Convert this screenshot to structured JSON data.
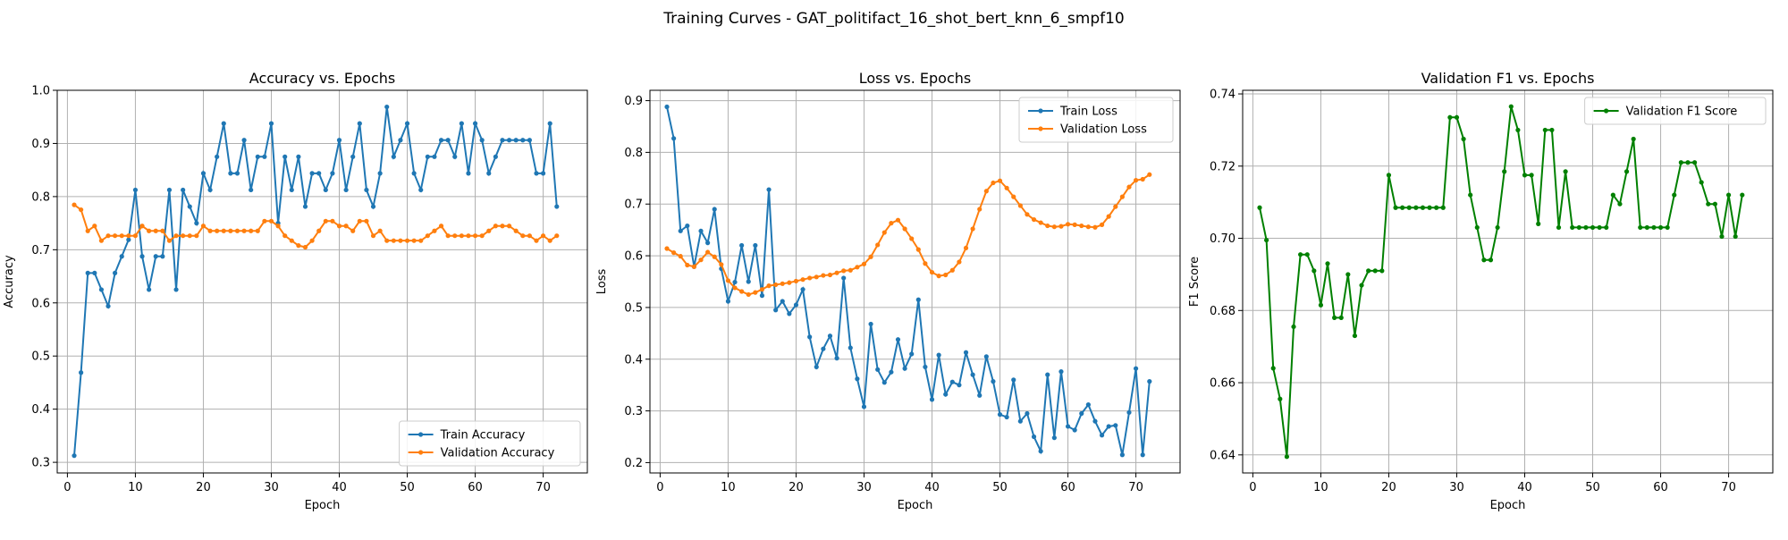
{
  "figure": {
    "suptitle": "Training Curves - GAT_politifact_16_shot_bert_knn_6_smpf10"
  },
  "colors": {
    "train": "#1f77b4",
    "validation": "#ff7f0e",
    "f1": "#008000"
  },
  "chart_data": [
    {
      "type": "line",
      "title": "Accuracy vs. Epochs",
      "xlabel": "Epoch",
      "ylabel": "Accuracy",
      "xlim": [
        -1.5,
        76.5
      ],
      "ylim": [
        0.28,
        1.0
      ],
      "xticks": [
        0,
        10,
        20,
        30,
        40,
        50,
        60,
        70
      ],
      "yticks": [
        0.3,
        0.4,
        0.5,
        0.6,
        0.7,
        0.8,
        0.9,
        1.0
      ],
      "ytick_labels": [
        "0.3",
        "0.4",
        "0.5",
        "0.6",
        "0.7",
        "0.8",
        "0.9",
        "1.0"
      ],
      "legend_loc": "lower-right",
      "grid": true,
      "series": [
        {
          "name": "Train Accuracy",
          "color_key": "train",
          "values": [
            0.3125,
            0.4688,
            0.6562,
            0.6562,
            0.625,
            0.5938,
            0.6562,
            0.6875,
            0.7188,
            0.8125,
            0.6875,
            0.625,
            0.6875,
            0.6875,
            0.8125,
            0.625,
            0.8125,
            0.7812,
            0.75,
            0.8438,
            0.8125,
            0.875,
            0.9375,
            0.8438,
            0.8438,
            0.9062,
            0.8125,
            0.875,
            0.875,
            0.9375,
            0.75,
            0.875,
            0.8125,
            0.875,
            0.7812,
            0.8438,
            0.8438,
            0.8125,
            0.8438,
            0.9062,
            0.8125,
            0.875,
            0.9375,
            0.8125,
            0.7812,
            0.8438,
            0.9688,
            0.875,
            0.9062,
            0.9375,
            0.8438,
            0.8125,
            0.875,
            0.875,
            0.9062,
            0.9062,
            0.875,
            0.9375,
            0.8438,
            0.9375,
            0.9062,
            0.8438,
            0.875,
            0.9062,
            0.9062,
            0.9062,
            0.9062,
            0.9062,
            0.8438,
            0.8438,
            0.9375,
            0.7812
          ]
        },
        {
          "name": "Validation Accuracy",
          "color_key": "validation",
          "values": [
            0.7845,
            0.7753,
            0.7355,
            0.7447,
            0.7171,
            0.7263,
            0.7263,
            0.7263,
            0.7263,
            0.7263,
            0.7447,
            0.7355,
            0.7355,
            0.7355,
            0.7171,
            0.7263,
            0.7263,
            0.7263,
            0.7263,
            0.7447,
            0.7355,
            0.7355,
            0.7355,
            0.7355,
            0.7355,
            0.7355,
            0.7355,
            0.7355,
            0.7539,
            0.7539,
            0.7447,
            0.7263,
            0.7171,
            0.7079,
            0.7048,
            0.7171,
            0.7355,
            0.7539,
            0.7539,
            0.7447,
            0.7447,
            0.7355,
            0.7539,
            0.7539,
            0.7263,
            0.7355,
            0.7171,
            0.7171,
            0.7171,
            0.7171,
            0.7171,
            0.7171,
            0.7263,
            0.7355,
            0.7447,
            0.7263,
            0.7263,
            0.7263,
            0.7263,
            0.7263,
            0.7263,
            0.7355,
            0.7447,
            0.7447,
            0.7447,
            0.7355,
            0.7263,
            0.7263,
            0.7171,
            0.7263,
            0.7171,
            0.7263
          ]
        }
      ]
    },
    {
      "type": "line",
      "title": "Loss vs. Epochs",
      "xlabel": "Epoch",
      "ylabel": "Loss",
      "xlim": [
        -1.5,
        76.5
      ],
      "ylim": [
        0.18,
        0.92
      ],
      "xticks": [
        0,
        10,
        20,
        30,
        40,
        50,
        60,
        70
      ],
      "yticks": [
        0.2,
        0.3,
        0.4,
        0.5,
        0.6,
        0.7,
        0.8,
        0.9
      ],
      "ytick_labels": [
        "0.2",
        "0.3",
        "0.4",
        "0.5",
        "0.6",
        "0.7",
        "0.8",
        "0.9"
      ],
      "legend_loc": "upper-right",
      "grid": true,
      "series": [
        {
          "name": "Train Loss",
          "color_key": "train",
          "values": [
            0.888,
            0.827,
            0.648,
            0.658,
            0.579,
            0.648,
            0.625,
            0.69,
            0.575,
            0.512,
            0.549,
            0.62,
            0.55,
            0.62,
            0.523,
            0.728,
            0.495,
            0.512,
            0.488,
            0.505,
            0.535,
            0.443,
            0.385,
            0.42,
            0.445,
            0.402,
            0.557,
            0.422,
            0.362,
            0.308,
            0.468,
            0.38,
            0.355,
            0.375,
            0.438,
            0.382,
            0.41,
            0.515,
            0.385,
            0.322,
            0.408,
            0.332,
            0.356,
            0.35,
            0.413,
            0.37,
            0.33,
            0.405,
            0.357,
            0.293,
            0.288,
            0.36,
            0.28,
            0.295,
            0.25,
            0.222,
            0.37,
            0.248,
            0.376,
            0.27,
            0.263,
            0.295,
            0.312,
            0.28,
            0.253,
            0.27,
            0.272,
            0.215,
            0.297,
            0.382,
            0.215,
            0.357
          ]
        },
        {
          "name": "Validation Loss",
          "color_key": "validation",
          "values": [
            0.614,
            0.606,
            0.599,
            0.582,
            0.579,
            0.592,
            0.607,
            0.598,
            0.583,
            0.552,
            0.538,
            0.531,
            0.525,
            0.529,
            0.535,
            0.542,
            0.544,
            0.546,
            0.548,
            0.551,
            0.554,
            0.557,
            0.559,
            0.562,
            0.563,
            0.567,
            0.571,
            0.572,
            0.578,
            0.584,
            0.598,
            0.621,
            0.645,
            0.663,
            0.669,
            0.652,
            0.633,
            0.612,
            0.585,
            0.568,
            0.561,
            0.563,
            0.572,
            0.588,
            0.615,
            0.652,
            0.69,
            0.725,
            0.741,
            0.745,
            0.731,
            0.714,
            0.697,
            0.68,
            0.67,
            0.664,
            0.658,
            0.656,
            0.657,
            0.661,
            0.66,
            0.658,
            0.656,
            0.655,
            0.66,
            0.676,
            0.695,
            0.714,
            0.733,
            0.746,
            0.748,
            0.757
          ]
        }
      ]
    },
    {
      "type": "line",
      "title": "Validation F1 vs. Epochs",
      "xlabel": "Epoch",
      "ylabel": "F1 Score",
      "xlim": [
        -1.5,
        76.5
      ],
      "ylim": [
        0.635,
        0.741
      ],
      "xticks": [
        0,
        10,
        20,
        30,
        40,
        50,
        60,
        70
      ],
      "yticks": [
        0.64,
        0.66,
        0.68,
        0.7,
        0.72,
        0.74
      ],
      "ytick_labels": [
        "0.64",
        "0.66",
        "0.68",
        "0.70",
        "0.72",
        "0.74"
      ],
      "legend_loc": "upper-right",
      "grid": true,
      "series": [
        {
          "name": "Validation F1 Score",
          "color_key": "f1",
          "values": [
            0.7085,
            0.6995,
            0.664,
            0.6555,
            0.6395,
            0.6755,
            0.6955,
            0.6955,
            0.691,
            0.6815,
            0.693,
            0.678,
            0.678,
            0.69,
            0.673,
            0.687,
            0.691,
            0.691,
            0.691,
            0.7175,
            0.7085,
            0.7085,
            0.7085,
            0.7085,
            0.7085,
            0.7085,
            0.7085,
            0.7085,
            0.7335,
            0.7335,
            0.7275,
            0.712,
            0.703,
            0.694,
            0.694,
            0.703,
            0.7185,
            0.7365,
            0.73,
            0.7175,
            0.7175,
            0.704,
            0.73,
            0.73,
            0.703,
            0.7185,
            0.703,
            0.703,
            0.703,
            0.703,
            0.703,
            0.703,
            0.712,
            0.7095,
            0.7185,
            0.7275,
            0.703,
            0.703,
            0.703,
            0.703,
            0.703,
            0.712,
            0.721,
            0.721,
            0.721,
            0.7155,
            0.7095,
            0.7095,
            0.7005,
            0.712,
            0.7005,
            0.712
          ]
        }
      ]
    }
  ]
}
